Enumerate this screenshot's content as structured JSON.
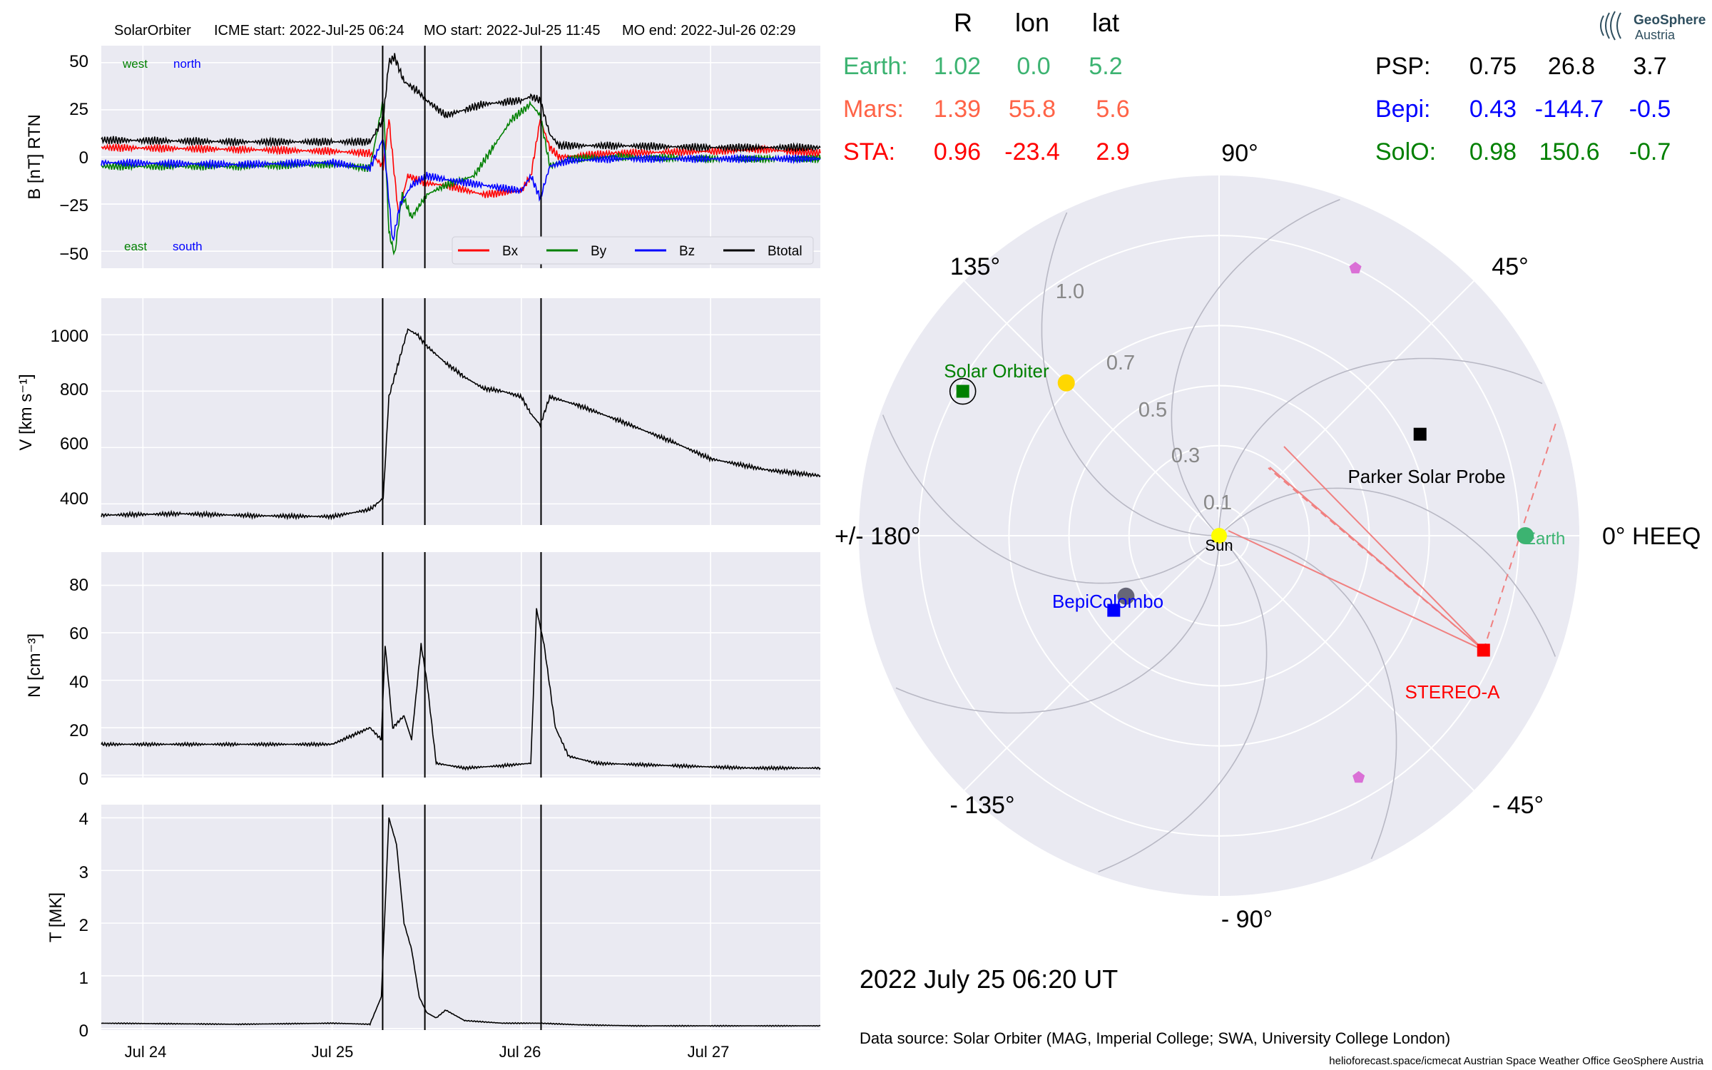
{
  "header": {
    "spacecraft": "SolarOrbiter",
    "icme_start": "ICME start: 2022-Jul-25 06:24",
    "mo_start": "MO start: 2022-Jul-25 11:45",
    "mo_end": "MO end: 2022-Jul-26 02:29"
  },
  "panel_b": {
    "ylabel": "B [nT] RTN",
    "ytick_labels": [
      "50",
      "25",
      "0",
      "−25",
      "−50"
    ],
    "corner_labels": {
      "west": "west",
      "north": "north",
      "east": "east",
      "south": "south"
    },
    "legend": [
      "Bx",
      "By",
      "Bz",
      "Btotal"
    ]
  },
  "panel_v": {
    "ylabel": "V [km s⁻¹]",
    "ytick_labels": [
      "1000",
      "800",
      "600",
      "400"
    ]
  },
  "panel_n": {
    "ylabel": "N [cm⁻³]",
    "ytick_labels": [
      "80",
      "60",
      "40",
      "20",
      "0"
    ]
  },
  "panel_t": {
    "ylabel": "T [MK]",
    "ytick_labels": [
      "4",
      "3",
      "2",
      "1",
      "0"
    ]
  },
  "xaxis": {
    "tick_labels": [
      "Jul 24",
      "Jul 25",
      "Jul 26",
      "Jul 27"
    ]
  },
  "position_table": {
    "col_headers": [
      "R",
      "lon",
      "lat"
    ],
    "left_rows": [
      {
        "name": "Earth:",
        "r": "1.02",
        "lon": "0.0",
        "lat": "5.2",
        "color": "#3cb371"
      },
      {
        "name": "Mars:",
        "r": "1.39",
        "lon": "55.8",
        "lat": "5.6",
        "color": "#ff6347"
      },
      {
        "name": "STA:",
        "r": "0.96",
        "lon": "-23.4",
        "lat": "2.9",
        "color": "#ff0000"
      }
    ],
    "right_rows": [
      {
        "name": "PSP:",
        "r": "0.75",
        "lon": "26.8",
        "lat": "3.7",
        "color": "#000000"
      },
      {
        "name": "Bepi:",
        "r": "0.43",
        "lon": "-144.7",
        "lat": "-0.5",
        "color": "#0000ff"
      },
      {
        "name": "SolO:",
        "r": "0.98",
        "lon": "150.6",
        "lat": "-0.7",
        "color": "#008000"
      }
    ]
  },
  "polar": {
    "angle_labels": [
      "90°",
      "45°",
      "0° HEEQ",
      "- 45°",
      "- 90°",
      "- 135°",
      "+/- 180°",
      "135°"
    ],
    "radial_labels": [
      "0.1",
      "0.3",
      "0.5",
      "0.7",
      "1.0"
    ],
    "bodies": {
      "sun": "Sun",
      "earth": "Earth",
      "stereo_a": "STEREO-A",
      "psp": "Parker Solar Probe",
      "bepi": "BepiColombo",
      "solo": "Solar Orbiter"
    }
  },
  "date_label": "2022 July 25  06:20 UT",
  "source_label": "Data source: Solar Orbiter (MAG, Imperial College; SWA, University College London)",
  "footer_credits": "helioforecast.space/icmecat   Austrian Space Weather Office   GeoSphere Austria",
  "logo": {
    "line1": "GeoSphere",
    "line2": "Austria"
  },
  "chart_data": [
    {
      "type": "line",
      "title": "SolarOrbiter",
      "ylabel": "B [nT] RTN",
      "x_unit": "days since 2022-Jul-24 00:00",
      "xlim": [
        -0.22,
        3.58
      ],
      "ylim": [
        -59,
        59
      ],
      "vlines": [
        1.267,
        1.49,
        2.104
      ],
      "series": [
        {
          "name": "Bx",
          "color": "#ff0000",
          "x": [
            -0.22,
            0.5,
            1.0,
            1.2,
            1.27,
            1.3,
            1.35,
            1.4,
            1.5,
            1.6,
            1.8,
            2.0,
            2.05,
            2.1,
            2.15,
            2.2,
            2.5,
            3.0,
            3.3,
            3.4,
            3.58
          ],
          "y": [
            5,
            4,
            3,
            2,
            -5,
            20,
            -30,
            -10,
            -14,
            -15,
            -20,
            -18,
            -10,
            20,
            5,
            0,
            2,
            3,
            4,
            3,
            2
          ]
        },
        {
          "name": "By",
          "color": "#008000",
          "x": [
            -0.22,
            0.5,
            1.0,
            1.2,
            1.27,
            1.3,
            1.33,
            1.37,
            1.42,
            1.5,
            1.6,
            1.75,
            1.85,
            1.95,
            2.05,
            2.1,
            2.15,
            2.25,
            2.5,
            3.0,
            3.58
          ],
          "y": [
            -5,
            -5,
            -4,
            -6,
            30,
            -40,
            -52,
            -20,
            -32,
            -20,
            -15,
            -10,
            5,
            20,
            28,
            22,
            -5,
            -1,
            0,
            -1,
            -1
          ]
        },
        {
          "name": "Bz",
          "color": "#0000ff",
          "x": [
            -0.22,
            0.5,
            1.0,
            1.2,
            1.27,
            1.32,
            1.36,
            1.42,
            1.5,
            1.6,
            1.8,
            2.0,
            2.05,
            2.1,
            2.15,
            2.25,
            2.5,
            3.0,
            3.58
          ],
          "y": [
            -3,
            -4,
            -3,
            -6,
            10,
            -45,
            -25,
            -15,
            -10,
            -12,
            -15,
            -18,
            -10,
            -22,
            -5,
            -2,
            -1,
            -1,
            -1
          ]
        },
        {
          "name": "Btotal",
          "color": "#000000",
          "x": [
            -0.22,
            0.5,
            1.0,
            1.2,
            1.27,
            1.3,
            1.33,
            1.38,
            1.45,
            1.5,
            1.6,
            1.7,
            1.8,
            1.9,
            2.0,
            2.05,
            2.1,
            2.15,
            2.2,
            2.5,
            3.0,
            3.58
          ],
          "y": [
            9,
            8,
            8,
            8,
            20,
            50,
            53,
            40,
            35,
            30,
            22,
            25,
            28,
            29,
            30,
            32,
            30,
            12,
            6,
            6,
            5,
            5
          ]
        }
      ]
    },
    {
      "type": "line",
      "ylabel": "V [km s⁻¹]",
      "x_unit": "days since 2022-Jul-24 00:00",
      "xlim": [
        -0.22,
        3.58
      ],
      "ylim": [
        325,
        1130
      ],
      "vlines": [
        1.267,
        1.49,
        2.104
      ],
      "series": [
        {
          "name": "",
          "color": "#000000",
          "x": [
            -0.22,
            0.2,
            0.6,
            1.0,
            1.2,
            1.27,
            1.3,
            1.35,
            1.4,
            1.45,
            1.5,
            1.6,
            1.7,
            1.8,
            1.9,
            2.0,
            2.05,
            2.1,
            2.15,
            2.3,
            2.5,
            2.8,
            3.0,
            3.3,
            3.58
          ],
          "y": [
            360,
            365,
            358,
            355,
            380,
            420,
            780,
            900,
            1020,
            1000,
            960,
            900,
            850,
            810,
            800,
            780,
            720,
            680,
            780,
            750,
            700,
            620,
            560,
            520,
            500
          ]
        }
      ]
    },
    {
      "type": "line",
      "ylabel": "N [cm⁻³]",
      "x_unit": "days since 2022-Jul-24 00:00",
      "xlim": [
        -0.22,
        3.58
      ],
      "ylim": [
        -1,
        94
      ],
      "vlines": [
        1.267,
        1.49,
        2.104
      ],
      "series": [
        {
          "name": "",
          "color": "#000000",
          "x": [
            -0.22,
            0.5,
            1.0,
            1.2,
            1.26,
            1.28,
            1.32,
            1.38,
            1.42,
            1.47,
            1.5,
            1.55,
            1.7,
            1.9,
            2.05,
            2.08,
            2.12,
            2.18,
            2.25,
            2.4,
            2.8,
            3.2,
            3.58
          ],
          "y": [
            13,
            13,
            13,
            20,
            15,
            55,
            20,
            25,
            15,
            55,
            40,
            5,
            3,
            4,
            5,
            70,
            55,
            20,
            8,
            5,
            4,
            3,
            3
          ]
        }
      ]
    },
    {
      "type": "line",
      "ylabel": "T [MK]",
      "x_unit": "days since 2022-Jul-24 00:00",
      "xlim": [
        -0.22,
        3.58
      ],
      "ylim": [
        -0.03,
        4.25
      ],
      "vlines": [
        1.267,
        1.49,
        2.104
      ],
      "series": [
        {
          "name": "",
          "color": "#000000",
          "x": [
            -0.22,
            0.5,
            1.0,
            1.2,
            1.26,
            1.3,
            1.34,
            1.38,
            1.42,
            1.46,
            1.5,
            1.55,
            1.6,
            1.7,
            1.9,
            2.1,
            2.3,
            2.6,
            3.0,
            3.58
          ],
          "y": [
            0.1,
            0.08,
            0.1,
            0.08,
            0.6,
            4.0,
            3.5,
            2.0,
            1.5,
            0.6,
            0.3,
            0.2,
            0.35,
            0.15,
            0.1,
            0.1,
            0.07,
            0.05,
            0.05,
            0.05
          ]
        }
      ]
    },
    {
      "type": "scatter",
      "title": "polar position plot",
      "rlim": [
        0,
        1.2
      ],
      "angle_unit": "degrees HEEQ longitude",
      "points": [
        {
          "name": "Sun",
          "r": 0.0,
          "lon": 0.0,
          "color": "#ffff00",
          "marker": "circle"
        },
        {
          "name": "Earth",
          "r": 1.02,
          "lon": 0.0,
          "color": "#3cb371",
          "marker": "circle"
        },
        {
          "name": "Mars",
          "r": 1.39,
          "lon": 55.8,
          "color": "#ff6347",
          "marker": "circle"
        },
        {
          "name": "STEREO-A",
          "r": 0.96,
          "lon": -23.4,
          "color": "#ff0000",
          "marker": "square"
        },
        {
          "name": "Parker Solar Probe",
          "r": 0.75,
          "lon": 26.8,
          "color": "#000000",
          "marker": "square"
        },
        {
          "name": "BepiColombo",
          "r": 0.43,
          "lon": -144.7,
          "color": "#0000ff",
          "marker": "square"
        },
        {
          "name": "Solar Orbiter",
          "r": 0.98,
          "lon": 150.6,
          "color": "#008000",
          "marker": "square"
        },
        {
          "name": "",
          "r": 0.72,
          "lon": 135.0,
          "color": "#ffd700",
          "marker": "circle"
        },
        {
          "name": "",
          "r": 0.37,
          "lon": -147.0,
          "color": "#666677",
          "marker": "circle"
        },
        {
          "name": "",
          "r": 1.0,
          "lon": 63.0,
          "color": "#da70d6",
          "marker": "pentagon"
        },
        {
          "name": "",
          "r": 0.93,
          "lon": -60.0,
          "color": "#da70d6",
          "marker": "pentagon"
        }
      ]
    }
  ]
}
